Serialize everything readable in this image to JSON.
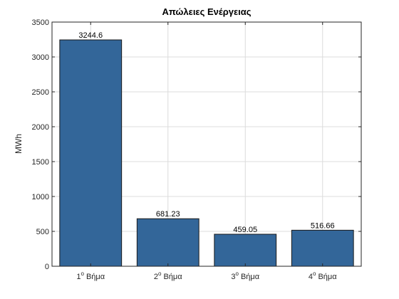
{
  "chart_data": {
    "type": "bar",
    "title": "Απώλειες Ενέργειας",
    "xlabel": "",
    "ylabel": "MWh",
    "categories": [
      {
        "num": "1",
        "sup": "o",
        "word": "Βήμα"
      },
      {
        "num": "2",
        "sup": "o",
        "word": "Βήμα"
      },
      {
        "num": "3",
        "sup": "o",
        "word": "Βήμα"
      },
      {
        "num": "4",
        "sup": "o",
        "word": "Βήμα"
      }
    ],
    "values": [
      3244.6,
      681.23,
      459.05,
      516.66
    ],
    "value_labels": [
      "3244.6",
      "681.23",
      "459.05",
      "516.66"
    ],
    "ylim": [
      0,
      3500
    ],
    "yticks": [
      0,
      500,
      1000,
      1500,
      2000,
      2500,
      3000,
      3500
    ],
    "grid": true,
    "bar_color": "#336699",
    "edge_color": "#1a1a1a"
  }
}
